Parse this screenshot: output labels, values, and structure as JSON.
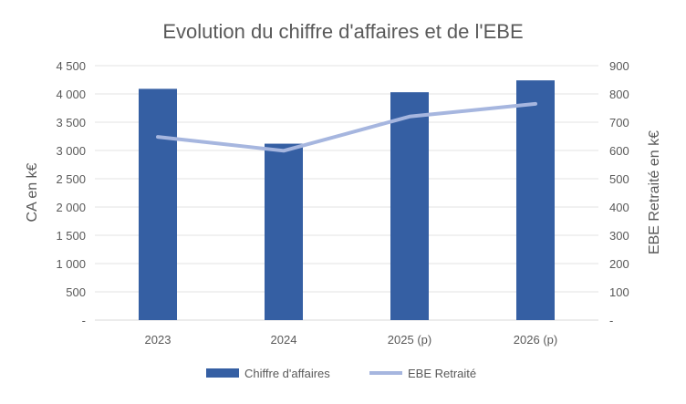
{
  "chart_data": {
    "type": "bar+line",
    "title": "Evolution du chiffre d'affaires et de l'EBE",
    "categories": [
      "2023",
      "2024",
      "2025 (p)",
      "2026 (p)"
    ],
    "series": [
      {
        "name": "Chiffre d'affaires",
        "type": "bar",
        "axis": "left",
        "color": "#355FA3",
        "values": [
          4090,
          3120,
          4030,
          4240
        ]
      },
      {
        "name": "EBE Retraité",
        "type": "line",
        "axis": "right",
        "color": "#A6B6DF",
        "values": [
          648,
          599,
          720,
          765
        ]
      }
    ],
    "ylabel": "CA en k€",
    "y2label": "EBE Retraité en k€",
    "ylim": [
      0,
      4500
    ],
    "y2lim": [
      0,
      900
    ],
    "yticks": [
      "-",
      "500",
      "1 000",
      "1 500",
      "2 000",
      "2 500",
      "3 000",
      "3 500",
      "4 000",
      "4 500"
    ],
    "y2ticks": [
      "-",
      "100",
      "200",
      "300",
      "400",
      "500",
      "600",
      "700",
      "800",
      "900"
    ],
    "grid": true,
    "legend_position": "bottom"
  }
}
